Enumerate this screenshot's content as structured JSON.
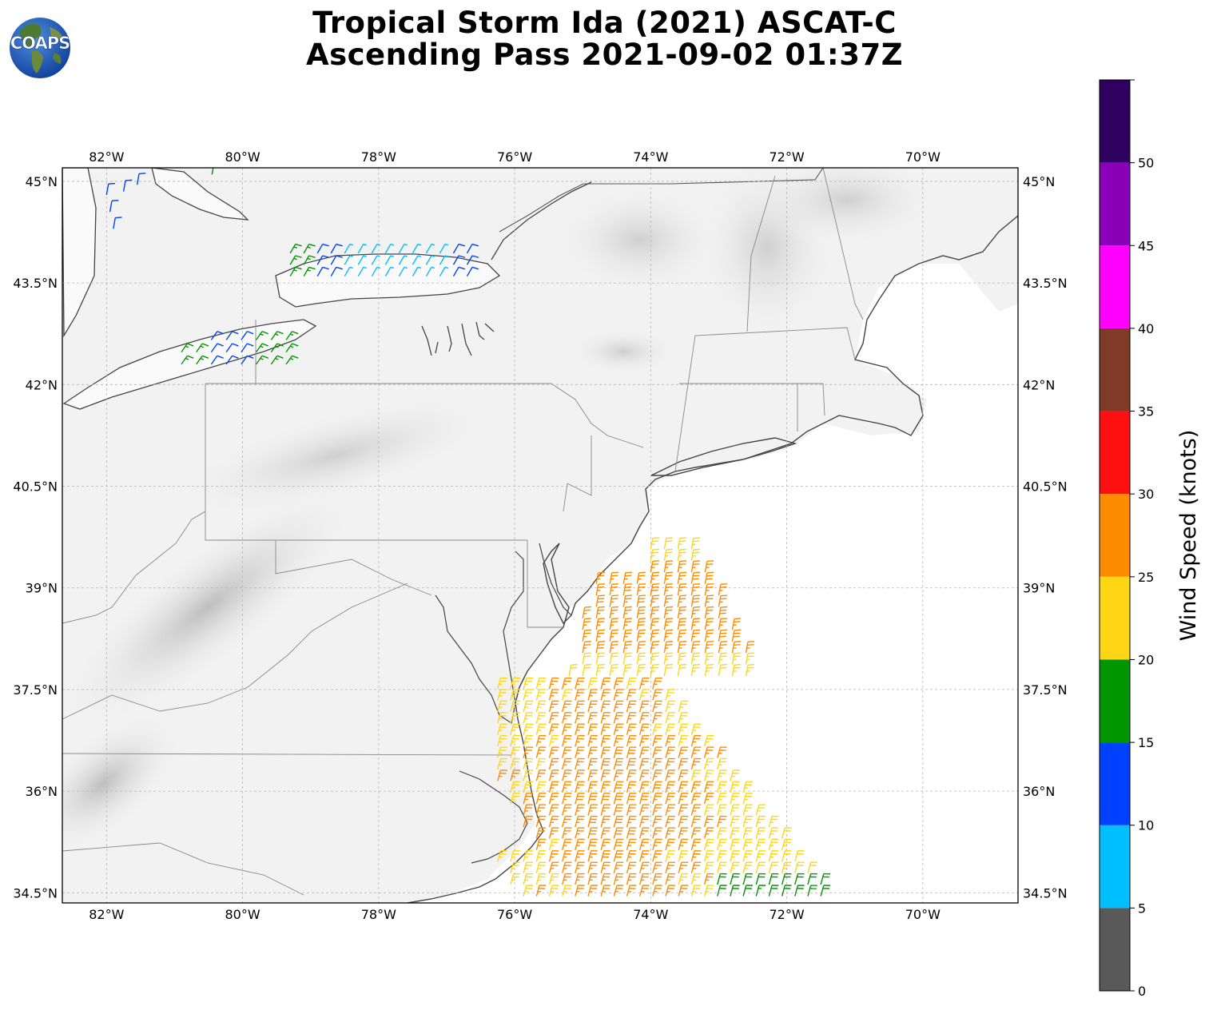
{
  "title": {
    "line1": "Tropical Storm Ida (2021) ASCAT-C",
    "line2": "Ascending Pass 2021-09-02 01:37Z"
  },
  "logo": {
    "text": "COAPS",
    "icon": "globe-logo-icon"
  },
  "map": {
    "lon_range": [
      -82.65,
      -68.6
    ],
    "lat_range": [
      34.35,
      45.2
    ],
    "lon_ticks": [
      "82°W",
      "80°W",
      "78°W",
      "76°W",
      "74°W",
      "72°W",
      "70°W"
    ],
    "lon_tick_values": [
      -82,
      -80,
      -78,
      -76,
      -74,
      -72,
      -70
    ],
    "lat_ticks": [
      "45°N",
      "43.5°N",
      "42°N",
      "40.5°N",
      "39°N",
      "37.5°N",
      "36°N",
      "34.5°N"
    ],
    "lat_tick_values": [
      45,
      43.5,
      42,
      40.5,
      39,
      37.5,
      36,
      34.5
    ],
    "gridlines": true,
    "background": "grayscale terrain"
  },
  "colorbar": {
    "label": "Wind Speed (knots)",
    "tick_labels": [
      "0",
      "5",
      "10",
      "15",
      "20",
      "25",
      "30",
      "35",
      "40",
      "45",
      "50"
    ],
    "bins": [
      {
        "min": 0,
        "max": 5,
        "color": "#595959"
      },
      {
        "min": 5,
        "max": 10,
        "color": "#00bfff"
      },
      {
        "min": 10,
        "max": 15,
        "color": "#0040ff"
      },
      {
        "min": 15,
        "max": 20,
        "color": "#009600"
      },
      {
        "min": 20,
        "max": 25,
        "color": "#ffd616"
      },
      {
        "min": 25,
        "max": 30,
        "color": "#ff8c00"
      },
      {
        "min": 30,
        "max": 35,
        "color": "#ff1010"
      },
      {
        "min": 35,
        "max": 40,
        "color": "#803a28"
      },
      {
        "min": 40,
        "max": 45,
        "color": "#ff00ff"
      },
      {
        "min": 45,
        "max": 50,
        "color": "#8a00b8"
      },
      {
        "min": 50,
        "max": 55,
        "color": "#300060"
      }
    ]
  }
}
